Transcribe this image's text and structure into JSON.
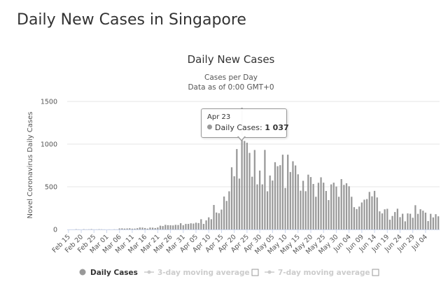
{
  "page": {
    "title": "Daily New Cases in Singapore"
  },
  "chart_data": {
    "type": "bar",
    "title": "Daily New Cases",
    "subtitle_lines": [
      "Cases per Day",
      "Data as of 0:00 GMT+0"
    ],
    "ylabel": "Novel Coronavirus Daily Cases",
    "xlabel": "",
    "ylim": [
      0,
      1500
    ],
    "yticks": [
      0,
      500,
      1000,
      1500
    ],
    "grid": true,
    "legend_position": "bottom",
    "x_start": "Feb 15",
    "x_end": "Jul 08",
    "xtick_labels": [
      "Feb 15",
      "Feb 20",
      "Feb 25",
      "Mar 01",
      "Mar 06",
      "Mar 11",
      "Mar 16",
      "Mar 21",
      "Mar 26",
      "Mar 31",
      "Apr 05",
      "Apr 10",
      "Apr 15",
      "Apr 20",
      "Apr 25",
      "Apr 30",
      "May 05",
      "May 10",
      "May 15",
      "May 20",
      "May 25",
      "May 30",
      "Jun 04",
      "Jun 09",
      "Jun 14",
      "Jun 19",
      "Jun 24",
      "Jun 29",
      "Jul 04"
    ],
    "series": [
      {
        "name": "Daily Cases",
        "color": "#999999",
        "values": [
          0,
          0,
          0,
          3,
          1,
          0,
          3,
          1,
          2,
          4,
          1,
          1,
          3,
          2,
          1,
          0,
          1,
          0,
          2,
          1,
          12,
          13,
          10,
          12,
          14,
          9,
          10,
          15,
          23,
          22,
          17,
          10,
          22,
          21,
          17,
          23,
          44,
          40,
          54,
          50,
          49,
          47,
          54,
          52,
          73,
          49,
          65,
          65,
          72,
          69,
          79,
          75,
          120,
          65,
          106,
          142,
          120,
          287,
          198,
          191,
          233,
          386,
          334,
          447,
          728,
          623,
          942,
          596,
          1426,
          1037,
          1016,
          897,
          618,
          931,
          528,
          690,
          528,
          932,
          447,
          632,
          573,
          788,
          741,
          753,
          876,
          486,
          876,
          673,
          799,
          750,
          646,
          454,
          570,
          448,
          642,
          614,
          533,
          383,
          547,
          611,
          548,
          451,
          344,
          528,
          548,
          503,
          383,
          590,
          522,
          541,
          506,
          383,
          261,
          239,
          268,
          316,
          349,
          356,
          440,
          388,
          452,
          375,
          212,
          188,
          236,
          242,
          114,
          158,
          204,
          243,
          144,
          184,
          95,
          188,
          184,
          137,
          284,
          183,
          237,
          220,
          197,
          98,
          183,
          141,
          179,
          154
        ]
      },
      {
        "name": "3-day moving average",
        "enabled": false,
        "color": "#cccccc"
      },
      {
        "name": "7-day moving average",
        "enabled": false,
        "color": "#cccccc"
      }
    ],
    "tooltip": {
      "date": "Apr 23",
      "series": "Daily Cases",
      "value_text": "1 037",
      "value": 1037
    },
    "colors": {
      "bar": "#999999",
      "grid": "#e6e6e6",
      "axis_line": "#ccd6eb",
      "legend_disabled": "#cccccc"
    }
  }
}
